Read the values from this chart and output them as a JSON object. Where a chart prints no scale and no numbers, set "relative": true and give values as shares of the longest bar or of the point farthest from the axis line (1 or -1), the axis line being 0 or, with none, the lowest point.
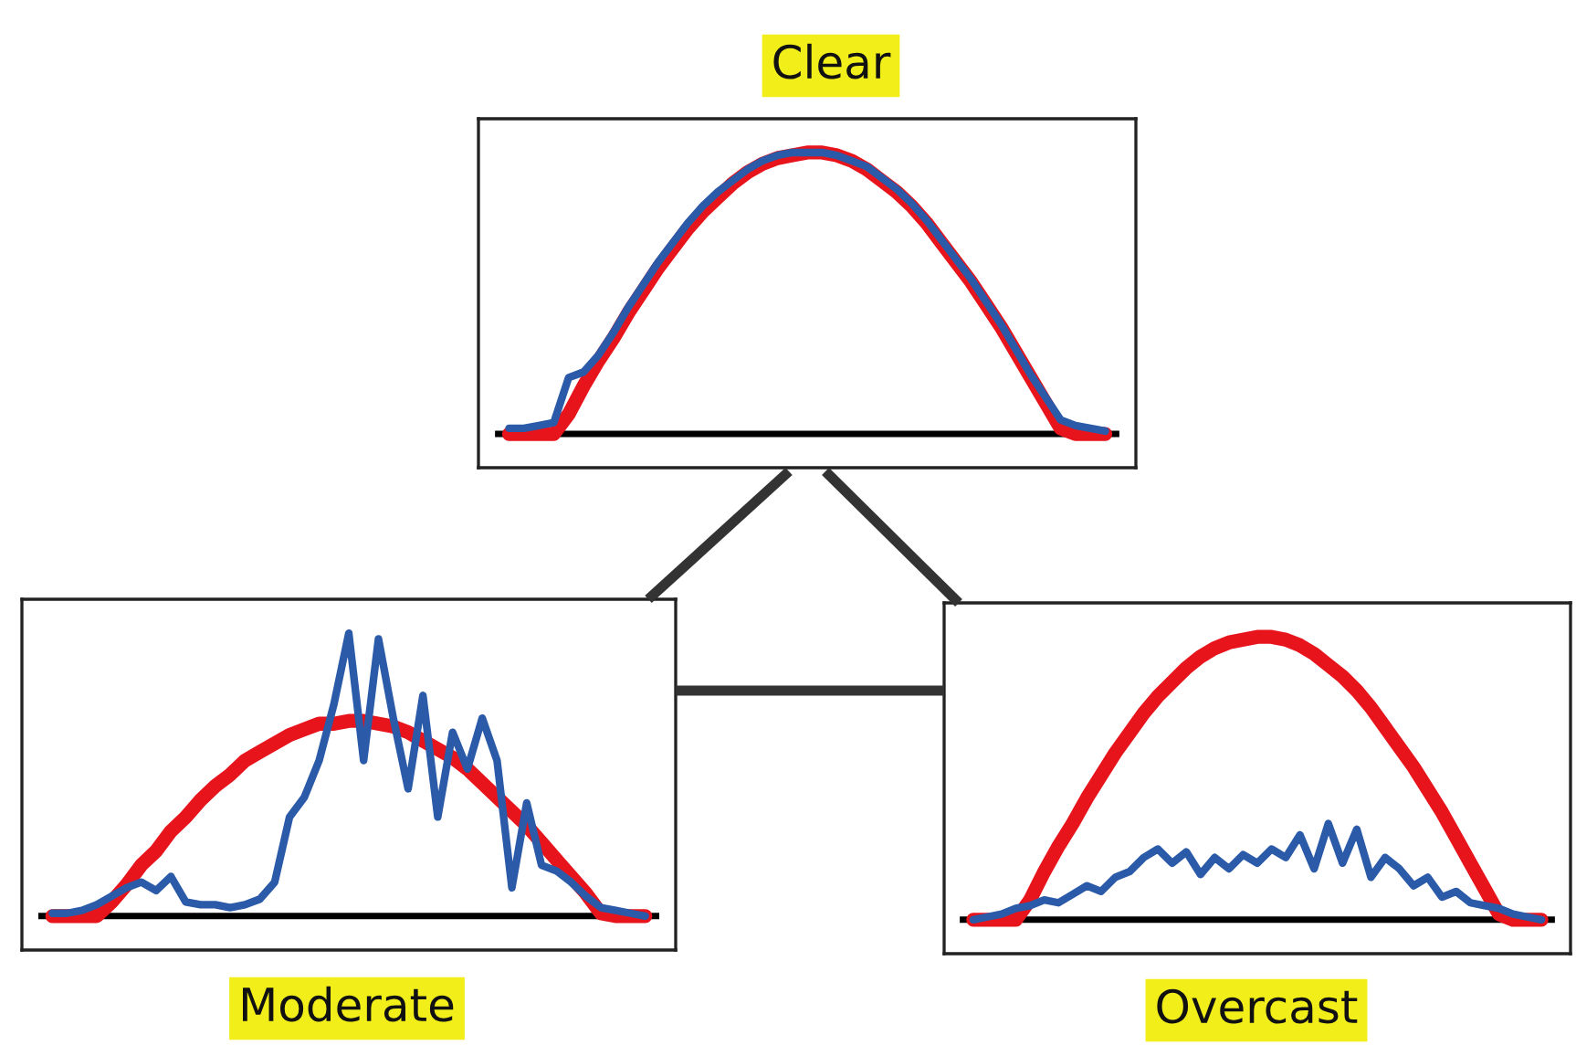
{
  "chart_data": [
    {
      "type": "line",
      "title": "Clear",
      "relative": true,
      "categories": [
        null,
        null,
        null,
        null,
        null,
        null,
        null,
        null,
        null,
        null,
        null,
        null,
        null,
        null,
        null,
        null,
        null,
        null,
        null,
        null,
        null,
        null,
        null,
        null,
        null,
        null,
        null,
        null,
        null,
        null,
        null,
        null,
        null,
        null,
        null,
        null,
        null,
        null,
        null,
        null,
        null
      ],
      "series": [
        {
          "color": "#e8141c",
          "values": [
            0,
            0,
            0,
            0,
            0.07,
            0.17,
            0.26,
            0.34,
            0.43,
            0.51,
            0.59,
            0.66,
            0.73,
            0.79,
            0.84,
            0.89,
            0.93,
            0.96,
            0.98,
            0.99,
            1,
            1,
            0.99,
            0.97,
            0.94,
            0.9,
            0.86,
            0.81,
            0.75,
            0.68,
            0.61,
            0.54,
            0.46,
            0.38,
            0.29,
            0.2,
            0.11,
            0.02,
            0,
            0,
            0
          ]
        },
        {
          "color": "#2a5aa8",
          "values": [
            0.02,
            0.02,
            0.03,
            0.04,
            0.2,
            0.22,
            0.28,
            0.36,
            0.45,
            0.53,
            0.61,
            0.68,
            0.75,
            0.81,
            0.86,
            0.9,
            0.94,
            0.97,
            0.99,
            1,
            1,
            1,
            0.99,
            0.97,
            0.95,
            0.91,
            0.87,
            0.82,
            0.76,
            0.69,
            0.62,
            0.55,
            0.47,
            0.39,
            0.3,
            0.21,
            0.13,
            0.05,
            0.03,
            0.02,
            0.01
          ]
        }
      ]
    },
    {
      "type": "line",
      "title": "Moderate",
      "relative": true,
      "categories": [
        null,
        null,
        null,
        null,
        null,
        null,
        null,
        null,
        null,
        null,
        null,
        null,
        null,
        null,
        null,
        null,
        null,
        null,
        null,
        null,
        null,
        null,
        null,
        null,
        null,
        null,
        null,
        null,
        null,
        null,
        null,
        null,
        null,
        null,
        null,
        null,
        null,
        null,
        null,
        null,
        null
      ],
      "series": [
        {
          "color": "#e8141c",
          "values": [
            0,
            0,
            0,
            0,
            0.05,
            0.11,
            0.18,
            0.23,
            0.3,
            0.35,
            0.41,
            0.46,
            0.5,
            0.55,
            0.58,
            0.61,
            0.64,
            0.66,
            0.68,
            0.68,
            0.69,
            0.69,
            0.68,
            0.67,
            0.65,
            0.62,
            0.59,
            0.56,
            0.52,
            0.47,
            0.42,
            0.37,
            0.32,
            0.26,
            0.2,
            0.14,
            0.08,
            0.01,
            0,
            0,
            0
          ]
        },
        {
          "color": "#2a5aa8",
          "values": [
            0.01,
            0.01,
            0.02,
            0.04,
            0.07,
            0.1,
            0.12,
            0.09,
            0.14,
            0.05,
            0.04,
            0.04,
            0.03,
            0.04,
            0.06,
            0.12,
            0.35,
            0.42,
            0.55,
            0.75,
            1,
            0.55,
            0.98,
            0.7,
            0.45,
            0.78,
            0.35,
            0.65,
            0.52,
            0.7,
            0.55,
            0.1,
            0.4,
            0.18,
            0.16,
            0.12,
            0.07,
            0.03,
            0.02,
            0.01,
            0
          ]
        }
      ]
    },
    {
      "type": "line",
      "title": "Overcast",
      "relative": true,
      "categories": [
        null,
        null,
        null,
        null,
        null,
        null,
        null,
        null,
        null,
        null,
        null,
        null,
        null,
        null,
        null,
        null,
        null,
        null,
        null,
        null,
        null,
        null,
        null,
        null,
        null,
        null,
        null,
        null,
        null,
        null,
        null,
        null,
        null,
        null,
        null,
        null,
        null,
        null,
        null,
        null,
        null
      ],
      "series": [
        {
          "color": "#e8141c",
          "values": [
            0,
            0,
            0,
            0,
            0.07,
            0.17,
            0.26,
            0.34,
            0.43,
            0.51,
            0.59,
            0.66,
            0.73,
            0.79,
            0.84,
            0.89,
            0.93,
            0.96,
            0.98,
            0.99,
            1,
            1,
            0.99,
            0.97,
            0.94,
            0.9,
            0.86,
            0.81,
            0.75,
            0.68,
            0.61,
            0.54,
            0.46,
            0.38,
            0.29,
            0.2,
            0.11,
            0.02,
            0,
            0,
            0
          ]
        },
        {
          "color": "#2a5aa8",
          "values": [
            0,
            0.01,
            0.02,
            0.04,
            0.05,
            0.07,
            0.06,
            0.09,
            0.12,
            0.1,
            0.15,
            0.17,
            0.22,
            0.25,
            0.2,
            0.24,
            0.16,
            0.22,
            0.18,
            0.23,
            0.2,
            0.25,
            0.22,
            0.3,
            0.18,
            0.34,
            0.2,
            0.32,
            0.15,
            0.22,
            0.18,
            0.12,
            0.15,
            0.08,
            0.1,
            0.06,
            0.05,
            0.04,
            0.02,
            0.01,
            0
          ]
        }
      ]
    }
  ]
}
